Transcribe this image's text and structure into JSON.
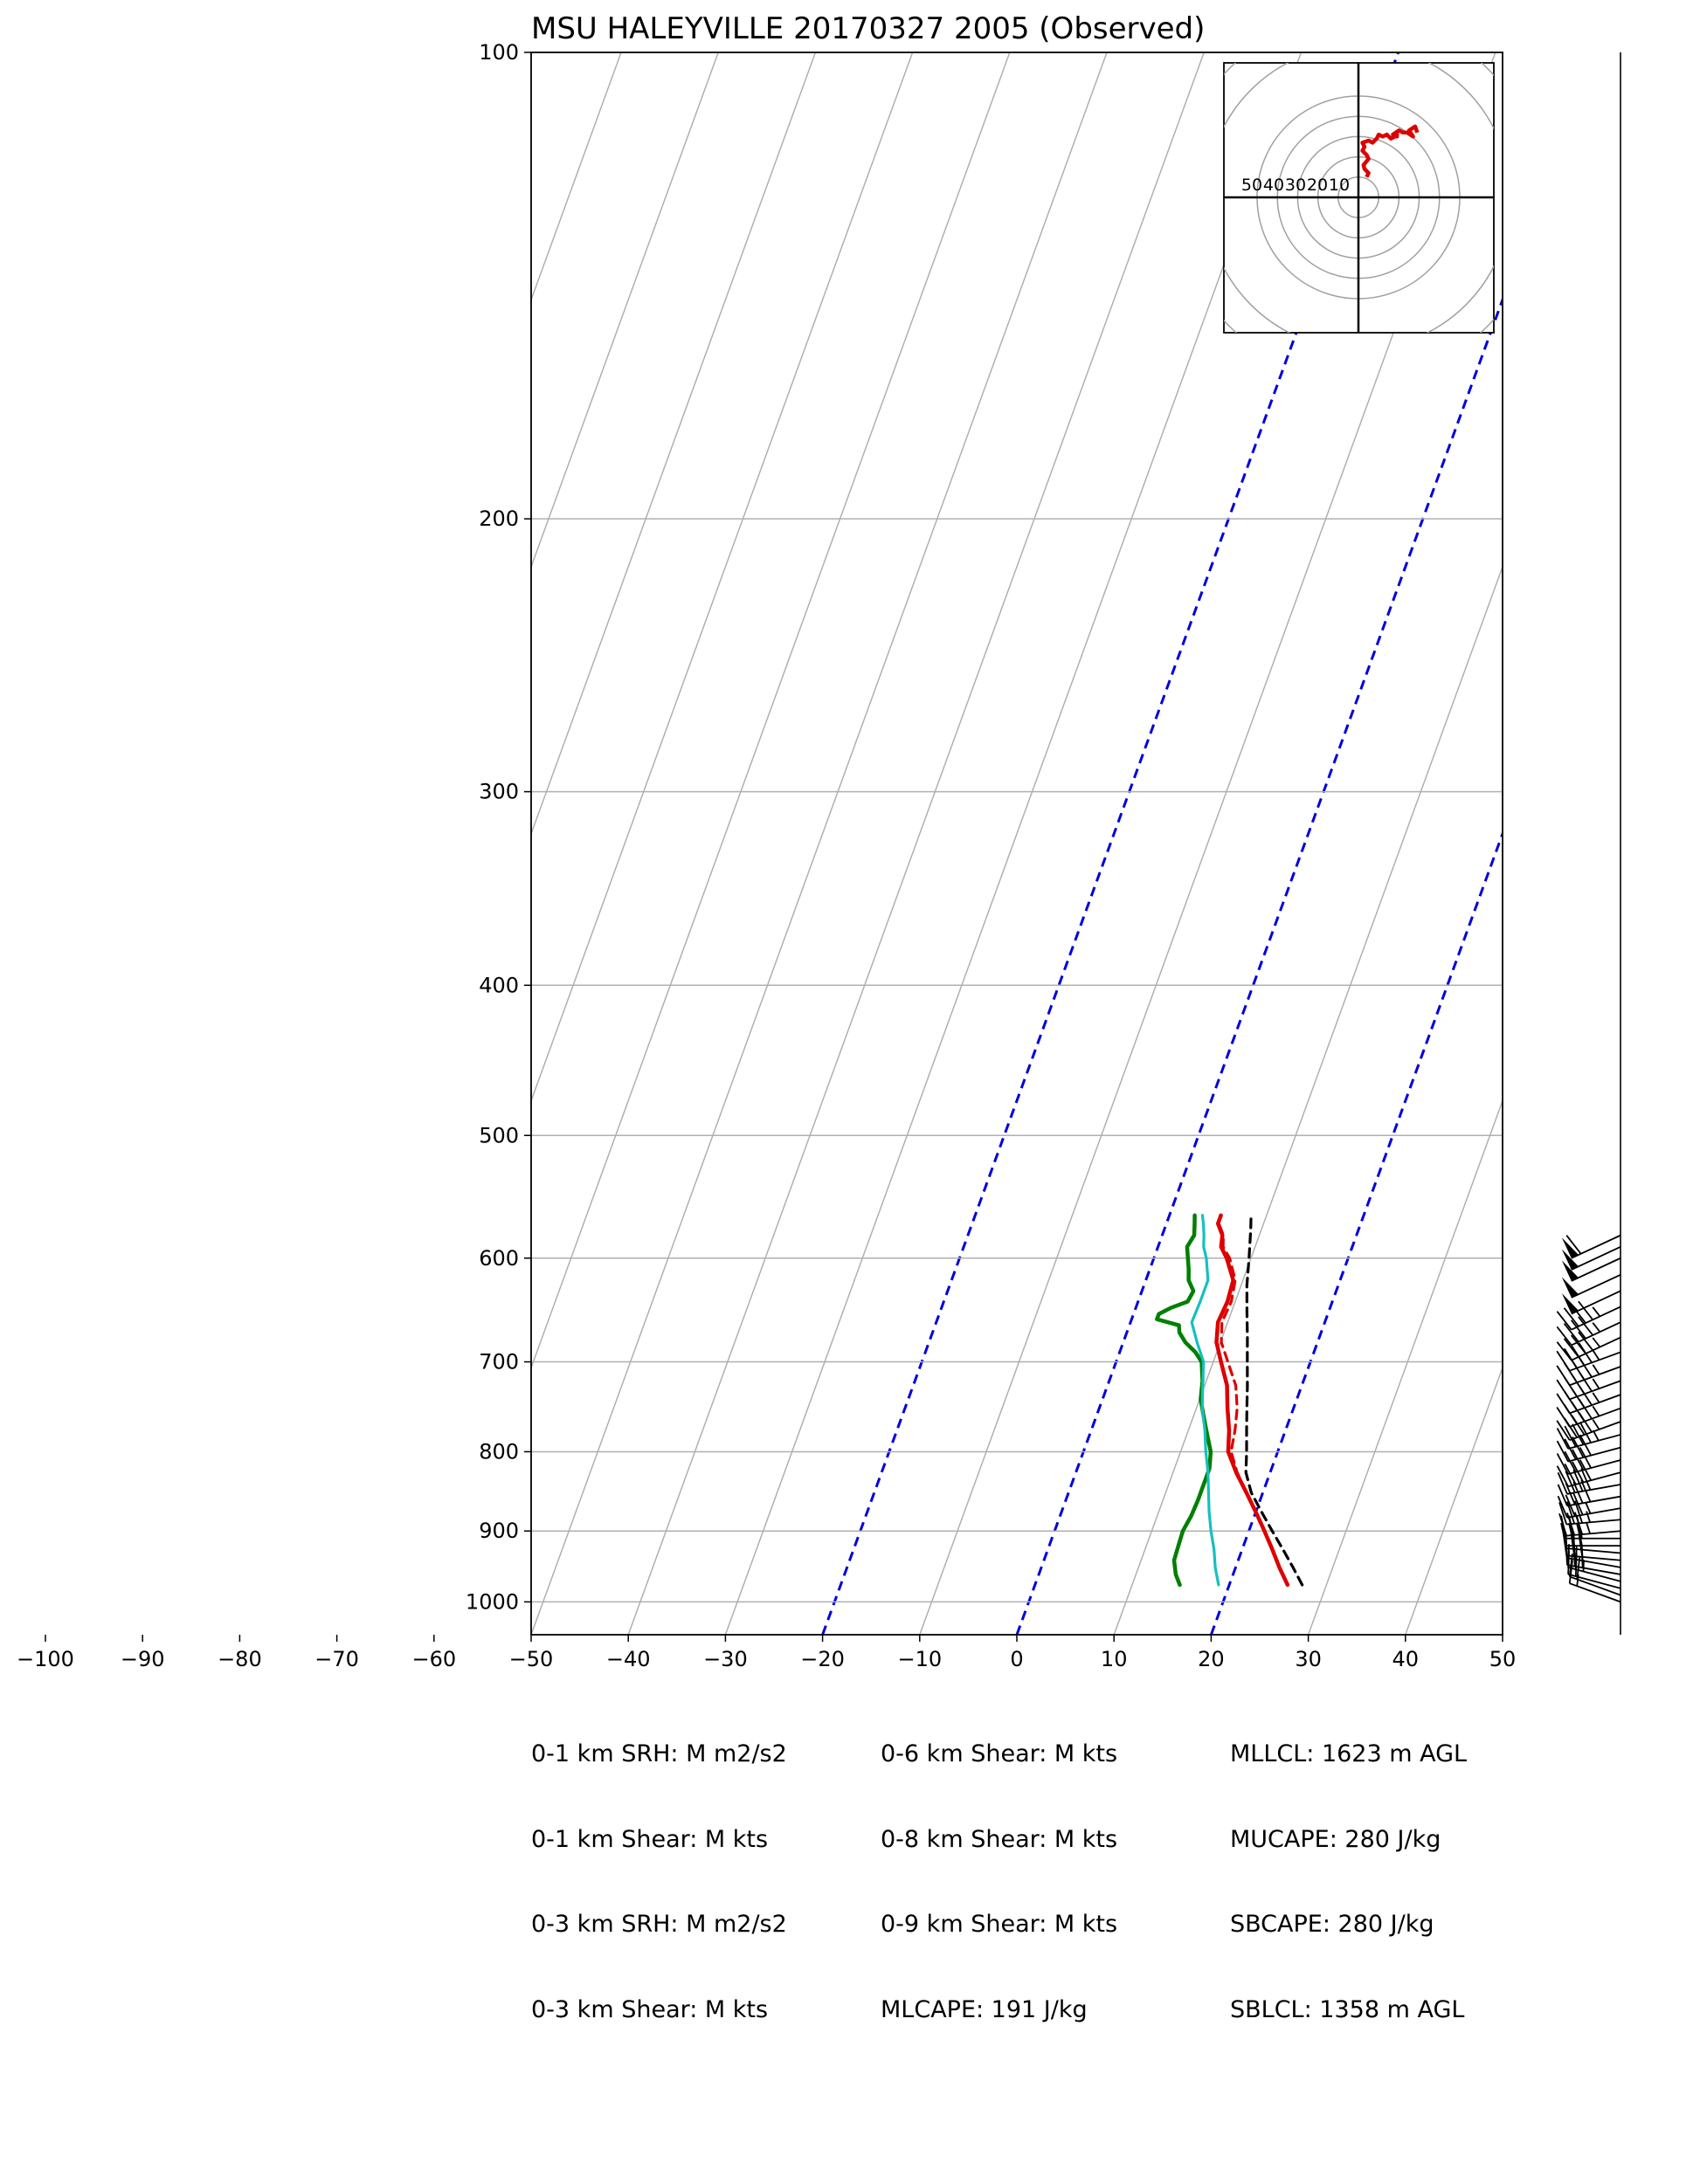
{
  "chart_data": {
    "type": "line",
    "subtype": "skew-T log-P sounding",
    "title": "MSU HALEYVILLE 20170327 2005   (Observed)",
    "xlim": [
      -50,
      50
    ],
    "ylim_pressure": [
      1050,
      100
    ],
    "log_pressure_axis": true,
    "grid": true,
    "x_ticks": [
      -100,
      -90,
      -80,
      -70,
      -60,
      -50,
      -40,
      -30,
      -20,
      -10,
      0,
      10,
      20,
      30,
      40,
      50
    ],
    "x_tick_labels": [
      "−100",
      "−90",
      "−80",
      "−70",
      "−60",
      "−50",
      "−40",
      "−30",
      "−20",
      "−10",
      "0",
      "10",
      "20",
      "30",
      "40",
      "50"
    ],
    "p_ticks": [
      100,
      200,
      300,
      400,
      500,
      600,
      700,
      800,
      900,
      1000
    ],
    "p_tick_labels": [
      "100",
      "200",
      "300",
      "400",
      "500",
      "600",
      "700",
      "800",
      "900",
      "1000"
    ],
    "isotherms": [
      -170,
      -160,
      -150,
      -140,
      -130,
      -120,
      -110,
      -100,
      -90,
      -80,
      -70,
      -60,
      -50,
      -40,
      -30,
      -20,
      -10,
      0,
      10,
      20,
      30,
      40,
      50
    ],
    "highlighted_isotherms": [
      -20,
      0,
      20
    ],
    "series": [
      {
        "color": "#dd0000",
        "style": "solid",
        "pressure": [
          975,
          950,
          925,
          900,
          875,
          850,
          825,
          800,
          775,
          750,
          725,
          700,
          680,
          660,
          640,
          620,
          600,
          590,
          580,
          570,
          563
        ],
        "values": [
          26.0,
          24.5,
          23.1,
          21.6,
          20.0,
          18.3,
          16.5,
          14.9,
          14.2,
          13.2,
          12.3,
          10.8,
          9.6,
          9.0,
          9.2,
          9.0,
          7.5,
          6.5,
          6.2,
          5.3,
          5.3
        ]
      },
      {
        "color": "#dd0000",
        "style": "dashed",
        "pressure": [
          975,
          950,
          925,
          900,
          875,
          850,
          825,
          800,
          775,
          750,
          725,
          700,
          680,
          660,
          640,
          620,
          600,
          590,
          580,
          570,
          563
        ],
        "values": [
          26.0,
          24.5,
          23.1,
          21.6,
          20.0,
          18.3,
          16.6,
          15.2,
          14.8,
          14.2,
          13.2,
          11.5,
          10.1,
          9.4,
          9.6,
          9.2,
          7.8,
          6.7,
          6.3,
          5.4,
          5.3
        ]
      },
      {
        "color": "#007f00",
        "style": "solid",
        "pressure": [
          975,
          960,
          940,
          920,
          900,
          880,
          860,
          840,
          820,
          800,
          780,
          760,
          740,
          720,
          700,
          690,
          680,
          670,
          663,
          657,
          652,
          646,
          640,
          630,
          620,
          610,
          600,
          590,
          580,
          570,
          563
        ],
        "values": [
          14.9,
          14.1,
          13.4,
          13.3,
          13.2,
          13.5,
          13.6,
          13.6,
          13.6,
          13.1,
          12.1,
          11.1,
          10.1,
          9.6,
          8.8,
          7.8,
          6.4,
          5.4,
          5.1,
          2.6,
          2.6,
          3.6,
          5.1,
          5.3,
          4.4,
          4.0,
          3.5,
          3.0,
          3.3,
          2.9,
          2.6
        ]
      },
      {
        "color": "#17bfbf",
        "style": "solid",
        "pressure": [
          975,
          950,
          925,
          900,
          875,
          850,
          825,
          800,
          775,
          750,
          725,
          700,
          680,
          660,
          640,
          620,
          600,
          590,
          580,
          570,
          563
        ],
        "values": [
          18.9,
          17.9,
          17.1,
          16.1,
          15.2,
          14.4,
          13.6,
          12.6,
          11.7,
          10.6,
          9.8,
          9.0,
          7.6,
          6.3,
          6.4,
          6.4,
          5.4,
          4.7,
          4.3,
          3.8,
          3.4
        ]
      },
      {
        "color": "#000000",
        "style": "dashed",
        "pressure": [
          975,
          950,
          925,
          900,
          875,
          850,
          825,
          800,
          775,
          750,
          725,
          700,
          675,
          650,
          625,
          600,
          575,
          563
        ],
        "values": [
          27.5,
          25.9,
          24.2,
          22.4,
          20.6,
          18.8,
          17.5,
          16.8,
          16.0,
          15.2,
          14.4,
          13.5,
          12.6,
          11.6,
          10.6,
          9.8,
          8.9,
          8.4
        ]
      }
    ],
    "hodograph": {
      "rings": [
        10,
        20,
        30,
        40,
        50
      ],
      "ring_labels": [
        "50",
        "40",
        "30",
        "20",
        "10"
      ],
      "trace_color": "#dd0000",
      "u": [
        4,
        5,
        3,
        2.5,
        5,
        4,
        2,
        3,
        2,
        5,
        7,
        9,
        10,
        12,
        14,
        16,
        18,
        19,
        19,
        17,
        20,
        22,
        24,
        27,
        25,
        28,
        29
      ],
      "v": [
        10,
        12,
        14,
        16,
        19,
        21,
        23,
        25,
        27,
        28,
        27,
        29,
        31,
        30,
        31,
        29,
        30,
        32,
        30,
        31,
        33,
        32,
        32,
        30,
        33,
        35,
        32
      ]
    },
    "barbs": {
      "pressure": [
        1000,
        990,
        980,
        970,
        960,
        950,
        940,
        930,
        920,
        910,
        900,
        885,
        870,
        855,
        840,
        825,
        810,
        795,
        780,
        765,
        750,
        735,
        720,
        705,
        690,
        675,
        660,
        645,
        630,
        615,
        600,
        590,
        580
      ],
      "direction": [
        290,
        290,
        285,
        285,
        280,
        280,
        275,
        275,
        270,
        270,
        265,
        265,
        260,
        260,
        260,
        255,
        255,
        255,
        255,
        250,
        250,
        250,
        250,
        250,
        250,
        245,
        245,
        245,
        245,
        245,
        245,
        245,
        245
      ],
      "speed_kts": [
        15,
        20,
        20,
        25,
        25,
        25,
        30,
        30,
        30,
        30,
        35,
        35,
        35,
        40,
        40,
        40,
        40,
        40,
        45,
        45,
        45,
        45,
        45,
        45,
        45,
        45,
        45,
        45,
        50,
        50,
        50,
        50,
        60
      ]
    }
  },
  "stats": {
    "col1": [
      "0-1 km SRH: M m2/s2",
      "0-1 km Shear: M kts",
      "0-3 km SRH: M m2/s2",
      "0-3 km Shear: M kts"
    ],
    "col2": [
      "0-6 km Shear: M kts",
      "0-8 km Shear: M kts",
      "0-9 km Shear: M kts",
      "MLCAPE: 191 J/kg"
    ],
    "col3": [
      "MLLCL: 1623 m AGL",
      "MUCAPE: 280 J/kg",
      "SBCAPE: 280 J/kg",
      "SBLCL: 1358 m AGL"
    ]
  }
}
